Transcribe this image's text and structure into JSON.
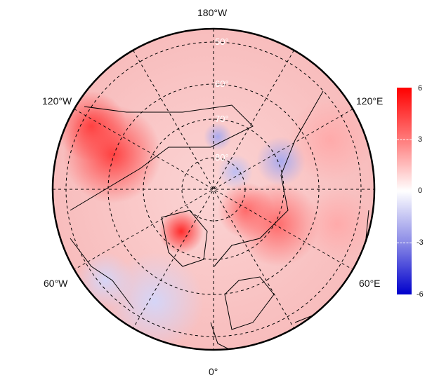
{
  "map": {
    "projection": "north-polar-stereographic",
    "longitude_labels": [
      {
        "id": "lon-180w",
        "text": "180°W"
      },
      {
        "id": "lon-120w",
        "text": "120°W"
      },
      {
        "id": "lon-120e",
        "text": "120°E"
      },
      {
        "id": "lon-60w",
        "text": "60°W"
      },
      {
        "id": "lon-60e",
        "text": "60°E"
      },
      {
        "id": "lon-0",
        "text": "0°"
      }
    ],
    "latitude_labels": [
      "50°",
      "60°",
      "70°",
      "80°"
    ],
    "anomaly_regions": [
      {
        "name": "western-canada-alaska-south",
        "value": 4.5
      },
      {
        "name": "greenland-west",
        "value": 5.0
      },
      {
        "name": "barents-kara",
        "value": 3.5
      },
      {
        "name": "east-siberian-sea",
        "value": -2.0
      },
      {
        "name": "north-pole-pacific-side",
        "value": -1.5
      },
      {
        "name": "north-atlantic",
        "value": -1.0
      },
      {
        "name": "eurasia-interior",
        "value": 2.0
      }
    ]
  },
  "colorbar": {
    "min": -6,
    "max": 6,
    "ticks": [
      "6",
      "3",
      "0",
      "-3",
      "-6"
    ],
    "colors": {
      "max": "#ff0000",
      "mid": "#ffffff",
      "min": "#0000cc"
    }
  }
}
